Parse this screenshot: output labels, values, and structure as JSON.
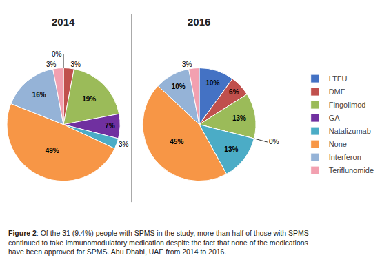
{
  "chart_data": [
    {
      "type": "pie",
      "title": "2014",
      "categories": [
        "LTFU",
        "DMF",
        "Fingolimod",
        "GA",
        "Natalizumab",
        "None",
        "Interferon",
        "Teriflunomide"
      ],
      "values": [
        0,
        3,
        19,
        7,
        3,
        49,
        16,
        3
      ],
      "value_labels": [
        "0%",
        "3%",
        "19%",
        "7%",
        "3%",
        "49%",
        "16%",
        "3%"
      ],
      "colors": [
        "#4472c4",
        "#c0504d",
        "#9bbb59",
        "#7030a0",
        "#4bacc6",
        "#f79646",
        "#95b3d7",
        "#f2a0b0"
      ],
      "data_labels": true,
      "legend": "right"
    },
    {
      "type": "pie",
      "title": "2016",
      "categories": [
        "LTFU",
        "DMF",
        "Fingolimod",
        "GA",
        "Natalizumab",
        "None",
        "Interferon",
        "Teriflunomide"
      ],
      "values": [
        10,
        6,
        13,
        0,
        13,
        45,
        10,
        3
      ],
      "value_labels": [
        "10%",
        "6%",
        "13%",
        "0%",
        "13%",
        "45%",
        "10%",
        "3%"
      ],
      "colors": [
        "#4472c4",
        "#c0504d",
        "#9bbb59",
        "#7030a0",
        "#4bacc6",
        "#f79646",
        "#95b3d7",
        "#f2a0b0"
      ],
      "data_labels": true,
      "legend": "right"
    }
  ],
  "caption": [
    "Figure 2",
    ": Of the 31 (9.4%) people with SPMS in the study, more than half of those with SPMS continued to take immunomodulatory medication despite the fact that none of the medications have been approved for SPMS. Abu Dhabi, UAE from 2014 to 2016."
  ]
}
